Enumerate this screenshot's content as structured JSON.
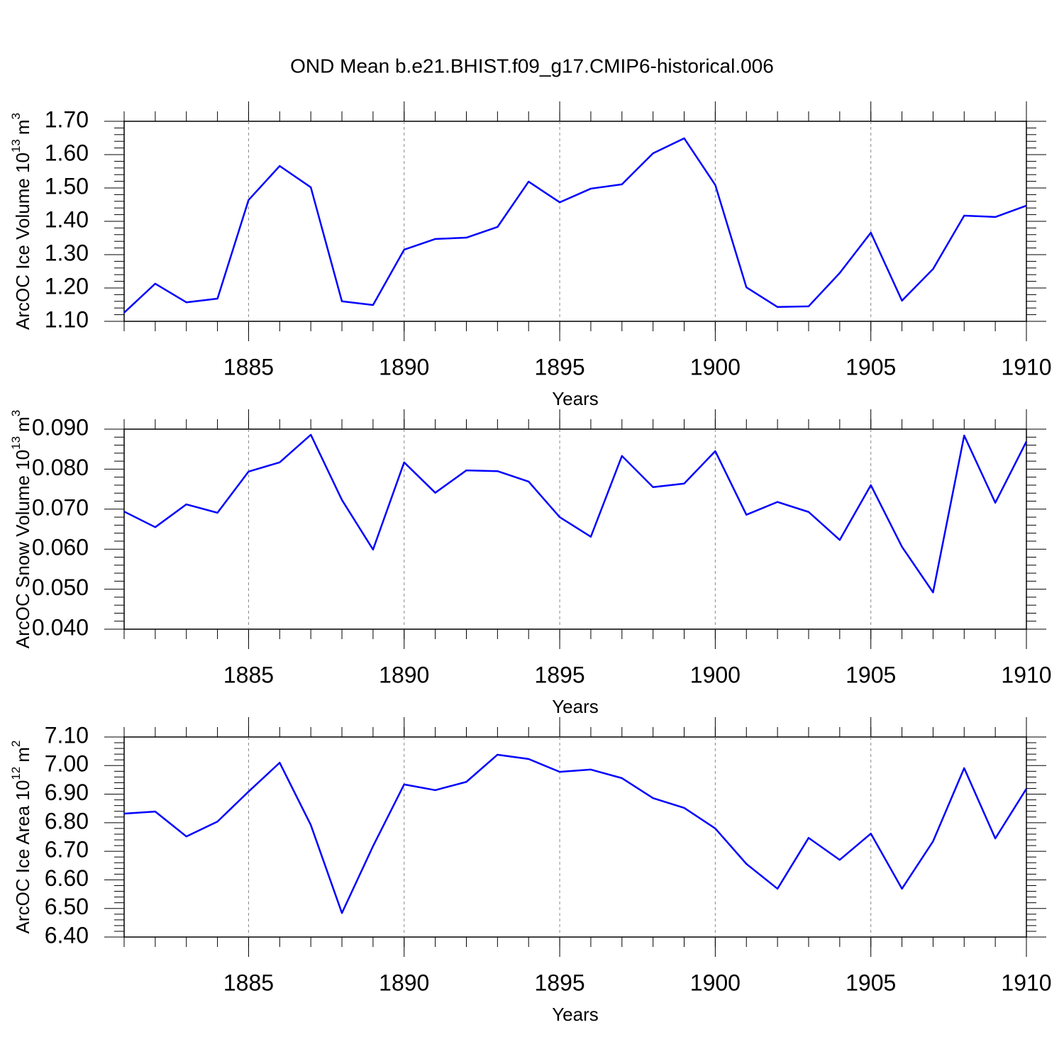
{
  "title": "OND Mean b.e21.BHIST.f09_g17.CMIP6-historical.006",
  "chart_data": [
    {
      "type": "line",
      "ylabel": [
        "ArcOC Ice Volume 10",
        "13",
        "m",
        "3"
      ],
      "xlabel": "Years",
      "x": [
        1881,
        1882,
        1883,
        1884,
        1885,
        1886,
        1887,
        1888,
        1889,
        1890,
        1891,
        1892,
        1893,
        1894,
        1895,
        1896,
        1897,
        1898,
        1899,
        1900,
        1901,
        1902,
        1903,
        1904,
        1905,
        1906,
        1907,
        1908,
        1909,
        1910
      ],
      "series": [
        {
          "color": "#0000ff",
          "values": [
            1.126,
            1.213,
            1.157,
            1.168,
            1.464,
            1.566,
            1.502,
            1.16,
            1.149,
            1.315,
            1.347,
            1.351,
            1.383,
            1.519,
            1.457,
            1.498,
            1.511,
            1.604,
            1.649,
            1.509,
            1.202,
            1.143,
            1.145,
            1.245,
            1.366,
            1.162,
            1.257,
            1.417,
            1.413,
            1.447
          ]
        }
      ],
      "xlim": [
        1881,
        1910
      ],
      "xticks": [
        1885,
        1890,
        1895,
        1900,
        1905,
        1910
      ],
      "ylim": [
        1.1,
        1.7
      ],
      "yticks": [
        {
          "value": 1.1,
          "label": "1.10"
        },
        {
          "value": 1.2,
          "label": "1.20"
        },
        {
          "value": 1.3,
          "label": "1.30"
        },
        {
          "value": 1.4,
          "label": "1.40"
        },
        {
          "value": 1.5,
          "label": "1.50"
        },
        {
          "value": 1.6,
          "label": "1.60"
        },
        {
          "value": 1.7,
          "label": "1.70"
        }
      ],
      "grid": "x-dashed"
    },
    {
      "type": "line",
      "ylabel": [
        "ArcOC Snow Volume 10",
        "13",
        "m",
        "3"
      ],
      "xlabel": "Years",
      "x": [
        1881,
        1882,
        1883,
        1884,
        1885,
        1886,
        1887,
        1888,
        1889,
        1890,
        1891,
        1892,
        1893,
        1894,
        1895,
        1896,
        1897,
        1898,
        1899,
        1900,
        1901,
        1902,
        1903,
        1904,
        1905,
        1906,
        1907,
        1908,
        1909,
        1910
      ],
      "series": [
        {
          "color": "#0000ff",
          "values": [
            0.0694,
            0.0655,
            0.0712,
            0.0691,
            0.0794,
            0.0817,
            0.0886,
            0.0723,
            0.0599,
            0.0817,
            0.0741,
            0.0797,
            0.0795,
            0.0769,
            0.068,
            0.0631,
            0.0833,
            0.0755,
            0.0764,
            0.0845,
            0.0686,
            0.0718,
            0.0693,
            0.0623,
            0.076,
            0.0606,
            0.0492,
            0.0884,
            0.0716,
            0.0869
          ]
        }
      ],
      "xlim": [
        1881,
        1910
      ],
      "xticks": [
        1885,
        1890,
        1895,
        1900,
        1905,
        1910
      ],
      "ylim": [
        0.04,
        0.09
      ],
      "yticks": [
        {
          "value": 0.04,
          "label": "0.040"
        },
        {
          "value": 0.05,
          "label": "0.050"
        },
        {
          "value": 0.06,
          "label": "0.060"
        },
        {
          "value": 0.07,
          "label": "0.070"
        },
        {
          "value": 0.08,
          "label": "0.080"
        },
        {
          "value": 0.09,
          "label": "0.090"
        }
      ],
      "grid": "x-dashed"
    },
    {
      "type": "line",
      "ylabel": [
        "ArcOC Ice Area 10",
        "12",
        "m",
        "2"
      ],
      "xlabel": "Years",
      "x": [
        1881,
        1882,
        1883,
        1884,
        1885,
        1886,
        1887,
        1888,
        1889,
        1890,
        1891,
        1892,
        1893,
        1894,
        1895,
        1896,
        1897,
        1898,
        1899,
        1900,
        1901,
        1902,
        1903,
        1904,
        1905,
        1906,
        1907,
        1908,
        1909,
        1910
      ],
      "series": [
        {
          "color": "#0000ff",
          "values": [
            6.832,
            6.839,
            6.752,
            6.804,
            6.909,
            7.01,
            6.792,
            6.484,
            6.718,
            6.934,
            6.914,
            6.943,
            7.038,
            7.023,
            6.978,
            6.986,
            6.956,
            6.886,
            6.852,
            6.78,
            6.656,
            6.569,
            6.747,
            6.67,
            6.762,
            6.569,
            6.735,
            6.991,
            6.745,
            6.919
          ]
        }
      ],
      "xlim": [
        1881,
        1910
      ],
      "xticks": [
        1885,
        1890,
        1895,
        1900,
        1905,
        1910
      ],
      "ylim": [
        6.4,
        7.1
      ],
      "yticks": [
        {
          "value": 6.4,
          "label": "6.40"
        },
        {
          "value": 6.5,
          "label": "6.50"
        },
        {
          "value": 6.6,
          "label": "6.60"
        },
        {
          "value": 6.7,
          "label": "6.70"
        },
        {
          "value": 6.8,
          "label": "6.80"
        },
        {
          "value": 6.9,
          "label": "6.90"
        },
        {
          "value": 7.0,
          "label": "7.00"
        },
        {
          "value": 7.1,
          "label": "7.10"
        }
      ],
      "grid": "x-dashed"
    }
  ]
}
